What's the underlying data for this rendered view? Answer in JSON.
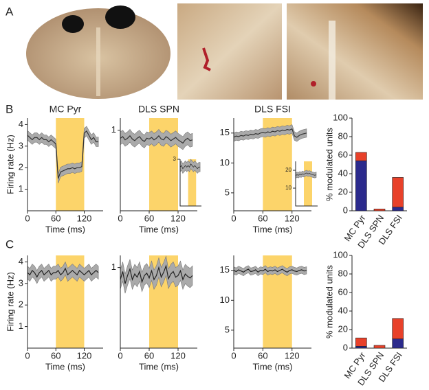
{
  "panel_labels": [
    "A",
    "B",
    "C"
  ],
  "chart_data": [
    {
      "type": "line",
      "title": "MC Pyr",
      "ylabel": "Firing rate (Hz)",
      "xlabel": "Time (ms)",
      "xlim": [
        0,
        160
      ],
      "xticks": [
        0,
        60,
        120
      ],
      "ylim": [
        0,
        4.3
      ],
      "yticks": [
        1,
        2,
        3,
        4
      ],
      "highlight": [
        60,
        120
      ],
      "color": "#333333",
      "band_color": "#aaaaaa",
      "x": [
        0,
        5,
        10,
        15,
        20,
        25,
        30,
        35,
        40,
        45,
        50,
        55,
        60,
        65,
        70,
        75,
        80,
        85,
        90,
        95,
        100,
        105,
        110,
        115,
        120,
        125,
        130,
        135,
        140,
        145,
        150
      ],
      "values": [
        3.5,
        3.4,
        3.3,
        3.4,
        3.4,
        3.3,
        3.4,
        3.3,
        3.3,
        3.2,
        3.3,
        3.2,
        3.1,
        1.5,
        1.8,
        1.85,
        1.9,
        1.95,
        1.95,
        2.0,
        1.95,
        2.0,
        2.0,
        2.05,
        3.6,
        3.7,
        3.5,
        3.3,
        3.4,
        3.2,
        3.2
      ],
      "error": 0.22
    },
    {
      "type": "line",
      "title": "DLS SPN",
      "xlabel": "Time (ms)",
      "xlim": [
        0,
        160
      ],
      "xticks": [
        0,
        60,
        120
      ],
      "ylim": [
        0,
        1.15
      ],
      "yticks": [
        1
      ],
      "highlight": [
        60,
        120
      ],
      "color": "#333333",
      "band_color": "#aaaaaa",
      "x": [
        0,
        5,
        10,
        15,
        20,
        25,
        30,
        35,
        40,
        45,
        50,
        55,
        60,
        65,
        70,
        75,
        80,
        85,
        90,
        95,
        100,
        105,
        110,
        115,
        120,
        125,
        130,
        135,
        140,
        145,
        150
      ],
      "values": [
        0.9,
        0.92,
        0.88,
        0.9,
        0.93,
        0.89,
        0.87,
        0.9,
        0.92,
        0.88,
        0.86,
        0.9,
        0.89,
        0.91,
        0.88,
        0.9,
        0.93,
        0.89,
        0.88,
        0.92,
        0.9,
        0.87,
        0.89,
        0.91,
        0.88,
        0.86,
        0.84,
        0.88,
        0.9,
        0.87,
        0.88
      ],
      "error": 0.08,
      "inset": {
        "xlim": [
          0,
          160
        ],
        "ylim": [
          0,
          3
        ],
        "yticks": [
          3
        ],
        "highlight": [
          60,
          120
        ],
        "x": [
          0,
          10,
          20,
          30,
          40,
          50,
          60,
          70,
          80,
          90,
          100,
          110,
          120,
          130,
          140,
          150
        ],
        "values": [
          2.5,
          2.6,
          2.4,
          2.5,
          2.6,
          2.5,
          2.6,
          2.5,
          2.7,
          2.6,
          2.5,
          2.6,
          2.5,
          2.4,
          2.5,
          2.5
        ],
        "error": 0.3
      }
    },
    {
      "type": "line",
      "title": "DLS FSI",
      "xlabel": "Time (ms)",
      "xlim": [
        0,
        160
      ],
      "xticks": [
        0,
        60,
        120
      ],
      "ylim": [
        2,
        17.5
      ],
      "yticks": [
        5,
        10,
        15
      ],
      "highlight": [
        60,
        120
      ],
      "color": "#333333",
      "band_color": "#aaaaaa",
      "x": [
        0,
        5,
        10,
        15,
        20,
        25,
        30,
        35,
        40,
        45,
        50,
        55,
        60,
        65,
        70,
        75,
        80,
        85,
        90,
        95,
        100,
        105,
        110,
        115,
        120,
        125,
        130,
        135,
        140,
        145,
        150
      ],
      "values": [
        14.3,
        14.5,
        14.4,
        14.6,
        14.5,
        14.7,
        14.6,
        14.8,
        14.7,
        14.9,
        14.8,
        15.0,
        15.1,
        15.0,
        15.2,
        15.1,
        15.3,
        15.2,
        15.4,
        15.3,
        15.5,
        15.4,
        15.6,
        15.5,
        15.7,
        14.5,
        14.3,
        14.6,
        14.8,
        14.9,
        15.0
      ],
      "error": 0.7,
      "inset": {
        "xlim": [
          0,
          160
        ],
        "ylim": [
          0,
          25
        ],
        "yticks": [
          10,
          20
        ],
        "highlight": [
          60,
          120
        ],
        "x": [
          0,
          10,
          20,
          30,
          40,
          50,
          60,
          70,
          80,
          90,
          100,
          110,
          120,
          130,
          140,
          150
        ],
        "values": [
          17,
          17.5,
          17.2,
          17.8,
          17.5,
          18,
          17.7,
          18.2,
          18.5,
          18,
          18.3,
          17.9,
          17.6,
          17.4,
          17.2,
          17.5
        ],
        "error": 1.5
      }
    },
    {
      "type": "bar",
      "ylabel": "% modulated units",
      "categories": [
        "MC Pyr",
        "DLS SPN",
        "DLS FSI"
      ],
      "ylim": [
        0,
        100
      ],
      "yticks": [
        0,
        20,
        40,
        60,
        80,
        100
      ],
      "series": [
        {
          "color": "#2b2a8c",
          "values": [
            54,
            0,
            4
          ]
        },
        {
          "color": "#e8412a",
          "values": [
            9,
            2,
            32
          ]
        }
      ]
    },
    {
      "type": "line",
      "ylabel": "Firing rate (Hz)",
      "xlabel": "Time (ms)",
      "xlim": [
        0,
        160
      ],
      "xticks": [
        0,
        60,
        120
      ],
      "ylim": [
        0,
        4.3
      ],
      "yticks": [
        1,
        2,
        3,
        4
      ],
      "highlight": [
        60,
        120
      ],
      "color": "#222222",
      "band_color": "#aaaaaa",
      "x": [
        0,
        5,
        10,
        15,
        20,
        25,
        30,
        35,
        40,
        45,
        50,
        55,
        60,
        65,
        70,
        75,
        80,
        85,
        90,
        95,
        100,
        105,
        110,
        115,
        120,
        125,
        130,
        135,
        140,
        145,
        150
      ],
      "values": [
        3.5,
        3.4,
        3.6,
        3.5,
        3.3,
        3.5,
        3.6,
        3.4,
        3.5,
        3.6,
        3.4,
        3.5,
        3.5,
        3.6,
        3.4,
        3.5,
        3.7,
        3.4,
        3.5,
        3.6,
        3.5,
        3.4,
        3.6,
        3.5,
        3.4,
        3.5,
        3.6,
        3.4,
        3.5,
        3.6,
        3.5
      ],
      "error": 0.3
    },
    {
      "type": "line",
      "xlabel": "Time (ms)",
      "xlim": [
        0,
        160
      ],
      "xticks": [
        0,
        60,
        120
      ],
      "ylim": [
        0,
        1.15
      ],
      "yticks": [
        1
      ],
      "highlight": [
        60,
        120
      ],
      "color": "#222222",
      "band_color": "#aaaaaa",
      "x": [
        0,
        5,
        10,
        15,
        20,
        25,
        30,
        35,
        40,
        45,
        50,
        55,
        60,
        65,
        70,
        75,
        80,
        85,
        90,
        95,
        100,
        105,
        110,
        115,
        120,
        125,
        130,
        135,
        140,
        145,
        150
      ],
      "values": [
        0.85,
        0.95,
        0.8,
        0.9,
        0.98,
        0.85,
        0.92,
        0.88,
        0.95,
        0.82,
        0.9,
        0.93,
        0.87,
        0.96,
        0.85,
        0.9,
        1.0,
        0.88,
        0.94,
        1.02,
        0.86,
        0.92,
        0.95,
        0.88,
        0.9,
        0.96,
        0.85,
        0.92,
        0.89,
        0.87,
        0.9
      ],
      "error": 0.12
    },
    {
      "type": "line",
      "xlabel": "Time (ms)",
      "xlim": [
        0,
        160
      ],
      "xticks": [
        0,
        60,
        120
      ],
      "ylim": [
        2,
        17.5
      ],
      "yticks": [
        5,
        10,
        15
      ],
      "highlight": [
        60,
        120
      ],
      "color": "#222222",
      "band_color": "#aaaaaa",
      "x": [
        0,
        5,
        10,
        15,
        20,
        25,
        30,
        35,
        40,
        45,
        50,
        55,
        60,
        65,
        70,
        75,
        80,
        85,
        90,
        95,
        100,
        105,
        110,
        115,
        120,
        125,
        130,
        135,
        140,
        145,
        150
      ],
      "values": [
        15,
        14.8,
        15.1,
        14.9,
        14.7,
        15,
        15.2,
        14.8,
        14.9,
        15.1,
        14.7,
        15,
        14.9,
        15.2,
        14.8,
        15,
        14.9,
        15.1,
        14.8,
        15,
        15.2,
        14.9,
        14.7,
        15,
        15.1,
        14.9,
        14.8,
        15,
        15.1,
        14.9,
        15
      ],
      "error": 0.6
    },
    {
      "type": "bar",
      "ylabel": "% modulated units",
      "categories": [
        "MC Pyr",
        "DLS SPN",
        "DLS FSI"
      ],
      "ylim": [
        0,
        100
      ],
      "yticks": [
        0,
        20,
        40,
        60,
        80,
        100
      ],
      "series": [
        {
          "color": "#2b2a8c",
          "values": [
            2,
            0,
            10
          ]
        },
        {
          "color": "#e8412a",
          "values": [
            9,
            3,
            22
          ]
        }
      ]
    }
  ]
}
